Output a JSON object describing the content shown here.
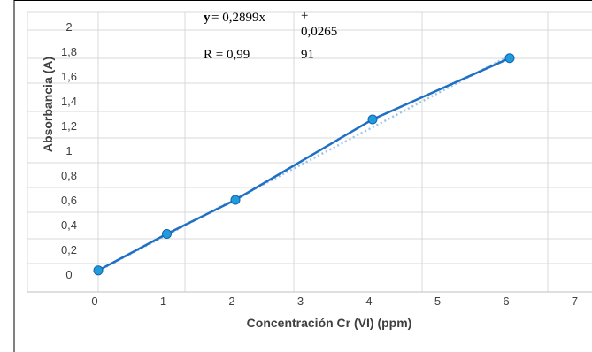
{
  "chart_data": {
    "type": "scatter",
    "xlabel": "Concentración Cr (VI) (ppm)",
    "ylabel": "Absorbancia (A)",
    "x_ticks": [
      "0",
      "1",
      "2",
      "3",
      "4",
      "5",
      "6",
      "7"
    ],
    "y_ticks": [
      "0",
      "0,2",
      "0,4",
      "0,6",
      "0,8",
      "1",
      "1,2",
      "1,4",
      "1,6",
      "1,8",
      "2"
    ],
    "xlim": [
      0,
      7
    ],
    "ylim": [
      0,
      2
    ],
    "grid": true,
    "series": [
      {
        "x": [
          0,
          1,
          2,
          4,
          6
        ],
        "y": [
          0.03,
          0.325,
          0.6,
          1.25,
          1.745
        ],
        "color": "#1f9ce0",
        "marker": "circle"
      }
    ],
    "fit_line": {
      "slope": 0.2899,
      "intercept": 0.0265,
      "color": "#1f6fc4"
    },
    "equation": {
      "y_label": "y",
      "eq_part1": "= 0,2899x",
      "plus": "+",
      "intercept_text": "0,0265",
      "r_label": "R = 0,99",
      "r_continued": "91"
    }
  }
}
